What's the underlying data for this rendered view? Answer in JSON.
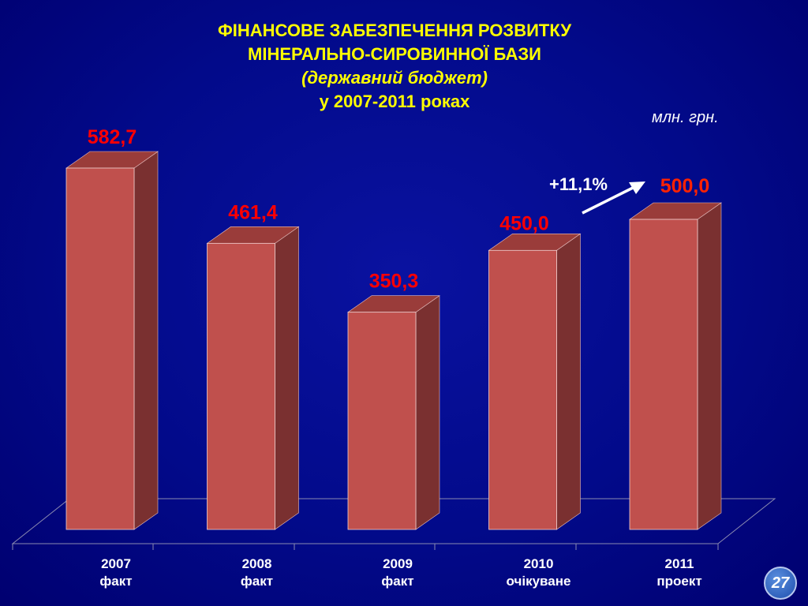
{
  "title": {
    "line1": "ФІНАНСОВЕ ЗАБЕЗПЕЧЕННЯ РОЗВИТКУ",
    "line2": "МІНЕРАЛЬНО-СИРОВИННОЇ БАЗИ",
    "line3": "(державний  бюджет)",
    "line4": "у 2007-2011 роках"
  },
  "unit": "млн. грн.",
  "page_number": "27",
  "annotation": {
    "text": "+11,1%"
  },
  "colors": {
    "background": "#00007f",
    "title": "#ffff00",
    "bar_front": "#c0504d",
    "bar_side": "#7a3030",
    "bar_top": "#9a3c3a",
    "value_label": "#ff0000",
    "value_label_last": "#ff2200",
    "axis_text": "#ffffff"
  },
  "chart_data": {
    "type": "bar",
    "categories": [
      [
        "2007",
        "факт"
      ],
      [
        "2008",
        "факт"
      ],
      [
        "2009",
        "факт"
      ],
      [
        "2010",
        "очікуване"
      ],
      [
        "2011",
        "проект"
      ]
    ],
    "values": [
      582.7,
      461.4,
      350.3,
      450.0,
      500.0
    ],
    "data_labels": [
      "582,7",
      "461,4",
      "350,3",
      "450,0",
      "500,0"
    ],
    "ylim": [
      0,
      582.7
    ],
    "grid": false,
    "legend": "none",
    "style": "3d-columns"
  }
}
